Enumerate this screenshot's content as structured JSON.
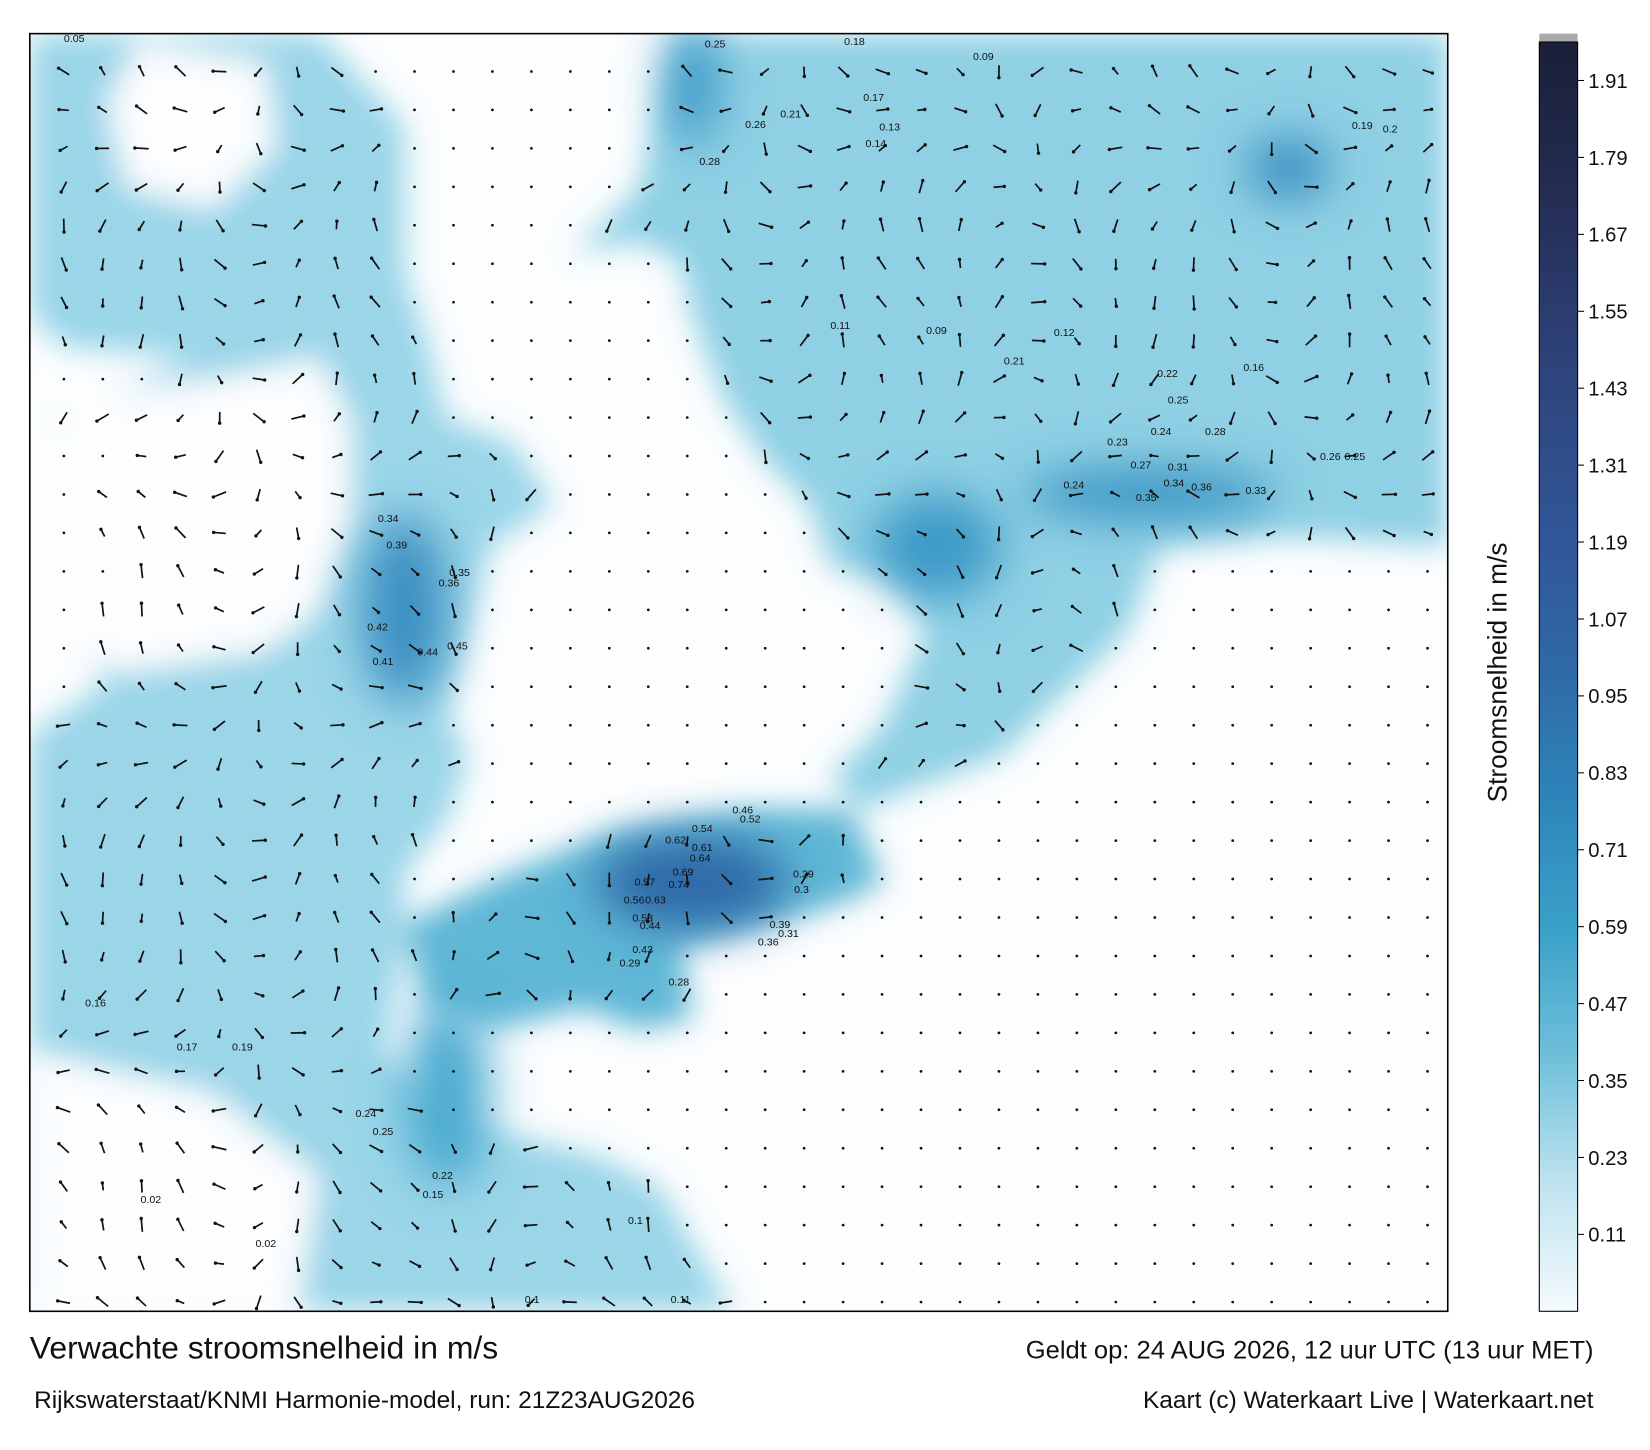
{
  "footer": {
    "title": "Verwachte stroomsnelheid in m/s",
    "valid": "Geldt op: 24 AUG 2026, 12 uur UTC (13 uur MET)",
    "run": "Rijkswaterstaat/KNMI Harmonie-model, run: 21Z23AUG2026",
    "credit": "Kaart (c) Waterkaart Live | Waterkaart.net"
  },
  "colorbar": {
    "label": "Stroomsnelheid in m/s",
    "clim": [
      -0.01,
      1.97
    ],
    "ticks": [
      0.11,
      0.23,
      0.35,
      0.47,
      0.59,
      0.71,
      0.83,
      0.95,
      1.07,
      1.19,
      1.31,
      1.43,
      1.55,
      1.67,
      1.79,
      1.91
    ],
    "colors": [
      "#f4fafc",
      "#bfe3ef",
      "#6fc0da",
      "#3aa1c8",
      "#2e86bb",
      "#2f6aa8",
      "#31579a",
      "#2f4a85",
      "#2b3a6c",
      "#222a4d",
      "#1b1f38"
    ]
  },
  "speed_labels": [
    0.62,
    0.61,
    0.64,
    0.69,
    0.74,
    0.57,
    0.56,
    0.63,
    0.54,
    0.52,
    0.46,
    0.45,
    0.44,
    0.42,
    0.41,
    0.39,
    0.36,
    0.35,
    0.34,
    0.25,
    0.28,
    0.26,
    0.21,
    0.17,
    0.18,
    0.09,
    0.19,
    0.2,
    0.35,
    0.34,
    0.36,
    0.33,
    0.31,
    0.27,
    0.26,
    0.25,
    0.24,
    0.22,
    0.25,
    0.28,
    0.24,
    0.23,
    0.21,
    0.12,
    0.16,
    0.14,
    0.13,
    0.09,
    0.11,
    0.05,
    0.16,
    0.17,
    0.19,
    0.24,
    0.25,
    0.22,
    0.15,
    0.02,
    0.02,
    0.1,
    0.11,
    0.1,
    0.53,
    0.44,
    0.43,
    0.29,
    0.28,
    0.39,
    0.36,
    0.31,
    0.29,
    0.3
  ]
}
